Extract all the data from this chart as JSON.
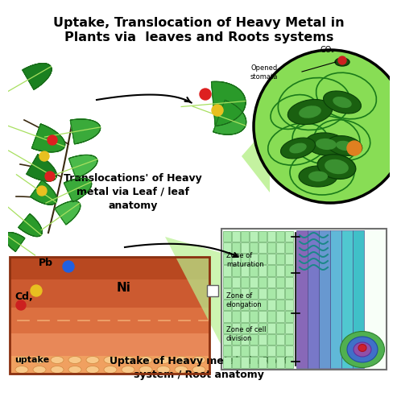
{
  "title_line1": "Uptake, Translocation of Heavy Metal in",
  "title_line2": "Plants via  leaves and Roots systems",
  "title_fontsize": 11.5,
  "title_fontweight": "bold",
  "bg_color": "#ffffff",
  "translocation_text": "Translocations' of Heavy\nmetal via Leaf / leaf\nanatomy",
  "uptake_text": "Uptake of Heavy metal via Root\nsystem / Root anatomy",
  "co2_text": "CO₂",
  "opened_stomata_text": "Opened\nstomata",
  "zone_maturation": "Zone of\nmaturation",
  "zone_elongation": "Zone of\nelongation",
  "zone_division": "Zone of cell\ndivision",
  "pb_text": "Pb",
  "cd_text": "Cd,",
  "ni_text": "Ni",
  "uptake_label": "uptake",
  "leaf_green_dark": "#1a7a1a",
  "leaf_green_mid": "#2a9a2a",
  "leaf_green_light": "#4aba4a",
  "cell_green": "#7acc5a",
  "cell_dark_organelle": "#2a7a2a",
  "soil_layer1": "#b84820",
  "soil_layer2": "#cc5c30",
  "soil_layer3": "#dc7040",
  "soil_layer4": "#e88050",
  "soil_layer5": "#f0a060",
  "soil_bottom": "#f5b870",
  "root_cyan1": "#40c0c8",
  "root_cyan2": "#60d0d8",
  "root_blue1": "#6090e0",
  "root_blue2": "#8080d0",
  "root_purple": "#9060b0",
  "root_lavender": "#b080d0",
  "root_green": "#60c060",
  "root_teal": "#208888",
  "root_pink": "#e04060"
}
